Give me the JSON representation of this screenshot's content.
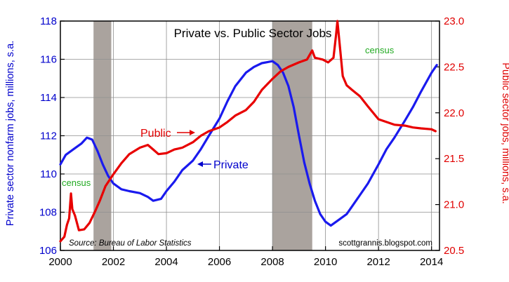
{
  "chart_data": {
    "type": "line",
    "title": "Private vs. Public Sector Jobs",
    "ylabel_left": "Private sector nonfarm jobs, millions, s.a.",
    "ylabel_right": "Public sector jobs, millions, s.a.",
    "source": "Source: Bureau of Labor Statistics",
    "credit": "scottgrannis.blogspot.com",
    "xlim": [
      2000,
      2014.3
    ],
    "ylim_left": [
      106,
      118
    ],
    "ylim_right": [
      20.5,
      23.0
    ],
    "x_ticks": [
      {
        "value": 2000,
        "label": "2000"
      },
      {
        "value": 2002,
        "label": "2002"
      },
      {
        "value": 2004,
        "label": "2004"
      },
      {
        "value": 2006,
        "label": "2006"
      },
      {
        "value": 2008,
        "label": "2008"
      },
      {
        "value": 2010,
        "label": "2010"
      },
      {
        "value": 2012,
        "label": "2012"
      },
      {
        "value": 2014,
        "label": "2014"
      }
    ],
    "y_ticks_left": [
      {
        "value": 106,
        "label": "106"
      },
      {
        "value": 108,
        "label": "108"
      },
      {
        "value": 110,
        "label": "110"
      },
      {
        "value": 112,
        "label": "112"
      },
      {
        "value": 114,
        "label": "114"
      },
      {
        "value": 116,
        "label": "116"
      },
      {
        "value": 118,
        "label": "118"
      }
    ],
    "y_ticks_right": [
      {
        "value": 20.5,
        "label": "20.5"
      },
      {
        "value": 21.0,
        "label": "21.0"
      },
      {
        "value": 21.5,
        "label": "21.5"
      },
      {
        "value": 22.0,
        "label": "22.0"
      },
      {
        "value": 22.5,
        "label": "22.5"
      },
      {
        "value": 23.0,
        "label": "23.0"
      }
    ],
    "recessions": [
      {
        "start": 2001.25,
        "end": 2001.92
      },
      {
        "start": 2008.0,
        "end": 2009.5
      }
    ],
    "series": [
      {
        "name": "Private",
        "axis": "left",
        "color": "#1a1aee",
        "points": [
          [
            2000.0,
            110.5
          ],
          [
            2000.2,
            111.0
          ],
          [
            2000.5,
            111.3
          ],
          [
            2000.8,
            111.6
          ],
          [
            2001.0,
            111.9
          ],
          [
            2001.2,
            111.8
          ],
          [
            2001.4,
            111.2
          ],
          [
            2001.6,
            110.5
          ],
          [
            2001.8,
            109.9
          ],
          [
            2002.0,
            109.5
          ],
          [
            2002.3,
            109.2
          ],
          [
            2002.6,
            109.1
          ],
          [
            2003.0,
            109.0
          ],
          [
            2003.3,
            108.8
          ],
          [
            2003.5,
            108.6
          ],
          [
            2003.8,
            108.7
          ],
          [
            2004.0,
            109.1
          ],
          [
            2004.3,
            109.6
          ],
          [
            2004.6,
            110.2
          ],
          [
            2005.0,
            110.7
          ],
          [
            2005.3,
            111.3
          ],
          [
            2005.6,
            112.0
          ],
          [
            2006.0,
            112.9
          ],
          [
            2006.3,
            113.8
          ],
          [
            2006.6,
            114.6
          ],
          [
            2007.0,
            115.3
          ],
          [
            2007.3,
            115.6
          ],
          [
            2007.6,
            115.8
          ],
          [
            2008.0,
            115.9
          ],
          [
            2008.2,
            115.7
          ],
          [
            2008.4,
            115.3
          ],
          [
            2008.6,
            114.6
          ],
          [
            2008.8,
            113.5
          ],
          [
            2009.0,
            112.0
          ],
          [
            2009.2,
            110.6
          ],
          [
            2009.4,
            109.5
          ],
          [
            2009.6,
            108.6
          ],
          [
            2009.8,
            107.9
          ],
          [
            2010.0,
            107.5
          ],
          [
            2010.2,
            107.3
          ],
          [
            2010.5,
            107.6
          ],
          [
            2010.8,
            107.9
          ],
          [
            2011.0,
            108.3
          ],
          [
            2011.3,
            108.9
          ],
          [
            2011.6,
            109.5
          ],
          [
            2012.0,
            110.5
          ],
          [
            2012.3,
            111.3
          ],
          [
            2012.6,
            111.9
          ],
          [
            2013.0,
            112.8
          ],
          [
            2013.3,
            113.5
          ],
          [
            2013.6,
            114.3
          ],
          [
            2014.0,
            115.3
          ],
          [
            2014.2,
            115.7
          ]
        ]
      },
      {
        "name": "Public",
        "axis": "right",
        "color": "#e80000",
        "points": [
          [
            2000.0,
            20.6
          ],
          [
            2000.15,
            20.65
          ],
          [
            2000.25,
            20.78
          ],
          [
            2000.33,
            20.85
          ],
          [
            2000.4,
            21.12
          ],
          [
            2000.45,
            20.95
          ],
          [
            2000.55,
            20.88
          ],
          [
            2000.7,
            20.72
          ],
          [
            2000.9,
            20.73
          ],
          [
            2001.1,
            20.8
          ],
          [
            2001.3,
            20.92
          ],
          [
            2001.5,
            21.05
          ],
          [
            2001.7,
            21.2
          ],
          [
            2002.0,
            21.33
          ],
          [
            2002.3,
            21.45
          ],
          [
            2002.6,
            21.55
          ],
          [
            2003.0,
            21.62
          ],
          [
            2003.3,
            21.65
          ],
          [
            2003.5,
            21.6
          ],
          [
            2003.7,
            21.55
          ],
          [
            2004.0,
            21.56
          ],
          [
            2004.3,
            21.6
          ],
          [
            2004.6,
            21.62
          ],
          [
            2005.0,
            21.68
          ],
          [
            2005.3,
            21.75
          ],
          [
            2005.6,
            21.8
          ],
          [
            2006.0,
            21.84
          ],
          [
            2006.3,
            21.9
          ],
          [
            2006.6,
            21.97
          ],
          [
            2007.0,
            22.03
          ],
          [
            2007.3,
            22.12
          ],
          [
            2007.6,
            22.25
          ],
          [
            2008.0,
            22.37
          ],
          [
            2008.3,
            22.45
          ],
          [
            2008.6,
            22.5
          ],
          [
            2009.0,
            22.55
          ],
          [
            2009.3,
            22.58
          ],
          [
            2009.5,
            22.68
          ],
          [
            2009.6,
            22.6
          ],
          [
            2009.9,
            22.58
          ],
          [
            2010.1,
            22.55
          ],
          [
            2010.3,
            22.6
          ],
          [
            2010.4,
            22.85
          ],
          [
            2010.45,
            23.0
          ],
          [
            2010.55,
            22.7
          ],
          [
            2010.65,
            22.4
          ],
          [
            2010.8,
            22.3
          ],
          [
            2011.0,
            22.25
          ],
          [
            2011.3,
            22.18
          ],
          [
            2011.6,
            22.07
          ],
          [
            2012.0,
            21.93
          ],
          [
            2012.3,
            21.9
          ],
          [
            2012.6,
            21.87
          ],
          [
            2013.0,
            21.86
          ],
          [
            2013.3,
            21.84
          ],
          [
            2013.6,
            21.83
          ],
          [
            2014.0,
            21.82
          ],
          [
            2014.15,
            21.8
          ]
        ]
      }
    ],
    "annotations": {
      "census_left": "census",
      "census_right": "census",
      "public_label": "Public",
      "private_label": "Private"
    }
  }
}
